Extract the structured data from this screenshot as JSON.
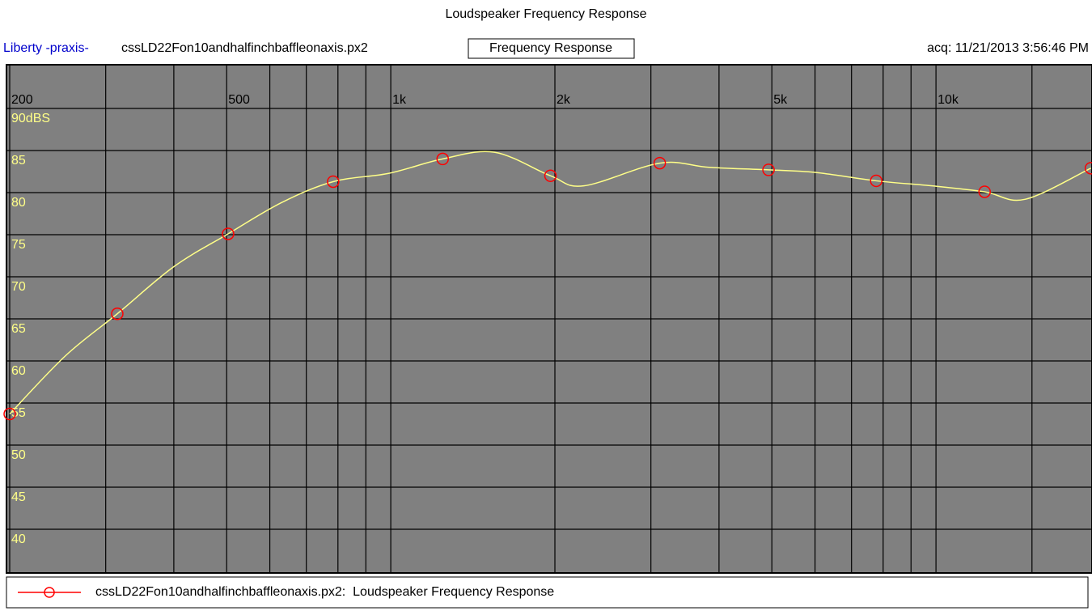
{
  "chart_data": {
    "type": "line",
    "title": "Loudspeaker Frequency Response",
    "source": "Liberty -praxis-",
    "file": "cssLD22Fon10andhalfinchbaffleonaxis.px2",
    "view": "Frequency Response",
    "acquired": "acq: 11/21/2013 3:56:46 PM",
    "xscale": "log",
    "xlim": [
      200,
      20000
    ],
    "xticks": [
      200,
      500,
      {
        "value": 1000,
        "label": "1k"
      },
      {
        "value": 2000,
        "label": "2k"
      },
      {
        "value": 5000,
        "label": "5k"
      },
      {
        "value": 10000,
        "label": "10k"
      }
    ],
    "x_minor_grid": [
      300,
      400,
      600,
      700,
      800,
      900,
      3000,
      4000,
      6000,
      7000,
      8000,
      9000,
      15000
    ],
    "ylim": [
      35,
      95
    ],
    "yticks": [
      {
        "value": 90,
        "label": "90dBS"
      },
      85,
      80,
      75,
      70,
      65,
      60,
      55,
      50,
      45,
      40
    ],
    "grid": true,
    "background": "#808080",
    "x": [
      200,
      253,
      315,
      400,
      503,
      630,
      784,
      993,
      1245,
      1550,
      1963,
      2260,
      3114,
      3835,
      4930,
      6000,
      7770,
      9840,
      12280,
      14560,
      19240
    ],
    "series": [
      {
        "name": "cssLD22Fon10andhalfinchbaffleonaxis.px2:  Loudspeaker Frequency Response",
        "color": "#ffff88",
        "marker_color": "#ff0000",
        "marker_every": 2,
        "values": [
          53.7,
          60.6,
          65.6,
          71.2,
          75.1,
          78.8,
          81.3,
          82.3,
          84.0,
          84.8,
          82.0,
          80.8,
          83.5,
          83.0,
          82.7,
          82.4,
          81.4,
          80.8,
          80.1,
          79.2,
          82.9
        ]
      }
    ]
  }
}
